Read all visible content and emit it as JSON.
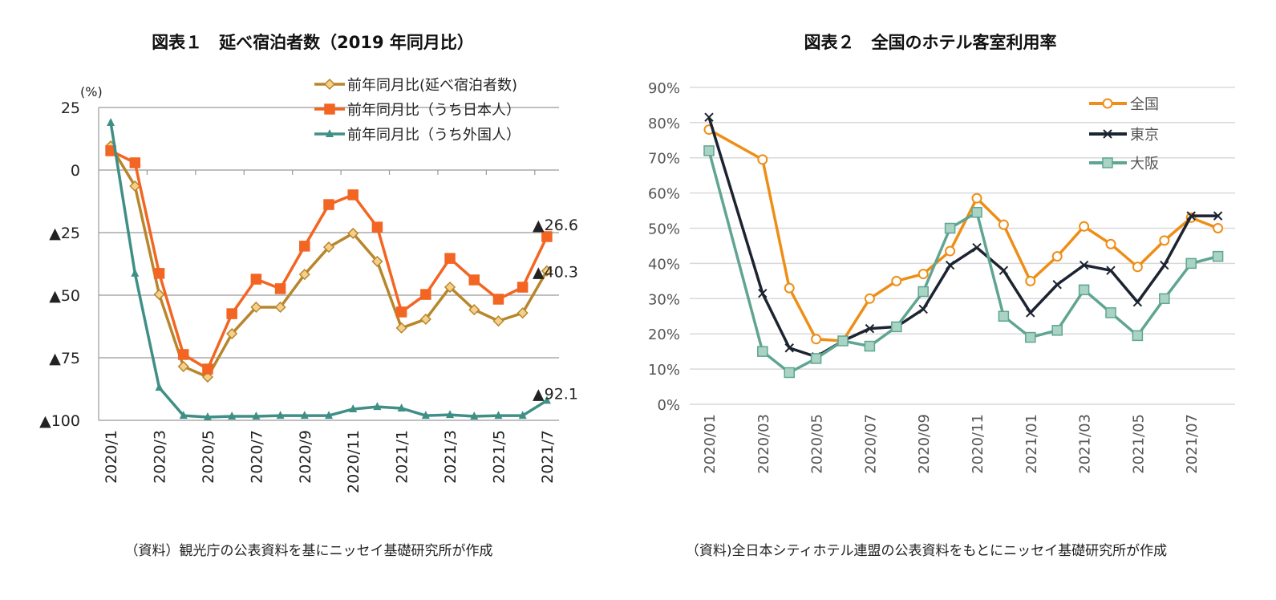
{
  "chart_data": [
    {
      "type": "line",
      "title": "図表１　延べ宿泊者数（2019 年同月比）",
      "ylabel": "(%)",
      "ylim": [
        -100,
        25
      ],
      "yticks": [
        25,
        0,
        -25,
        -50,
        -75,
        -100
      ],
      "ytick_labels": [
        "25",
        "0",
        "▲25",
        "▲50",
        "▲75",
        "▲100"
      ],
      "categories": [
        "2020/1",
        "2020/2",
        "2020/3",
        "2020/4",
        "2020/5",
        "2020/6",
        "2020/7",
        "2020/8",
        "2020/9",
        "2020/10",
        "2020/11",
        "2020/12",
        "2021/1",
        "2021/2",
        "2021/3",
        "2021/4",
        "2021/5",
        "2021/6",
        "2021/7"
      ],
      "xtick_labels": [
        "2020/1",
        "2020/3",
        "2020/5",
        "2020/7",
        "2020/9",
        "2020/11",
        "2021/1",
        "2021/3",
        "2021/5",
        "2021/7"
      ],
      "grid": true,
      "legend": "top-right",
      "series": [
        {
          "name": "前年同月比(延べ宿泊者数)",
          "color": "#b8862b",
          "marker": "diamond",
          "values": [
            9.6,
            -6.4,
            -49.7,
            -78.5,
            -82.7,
            -65.4,
            -54.8,
            -54.8,
            -41.7,
            -30.8,
            -25.3,
            -36.5,
            -63.1,
            -59.6,
            -46.8,
            -55.8,
            -60.3,
            -57.1,
            -40.3
          ]
        },
        {
          "name": "前年同月比（うち日本人）",
          "color": "#f26522",
          "marker": "square",
          "values": [
            7.7,
            2.9,
            -41.3,
            -73.7,
            -79.5,
            -57.4,
            -43.6,
            -47.4,
            -30.4,
            -13.8,
            -9.9,
            -22.8,
            -56.7,
            -49.7,
            -35.3,
            -43.9,
            -51.6,
            -46.8,
            -26.6
          ]
        },
        {
          "name": "前年同月比（うち外国人）",
          "color": "#3f8f86",
          "marker": "triangle",
          "values": [
            18.9,
            -41.3,
            -86.9,
            -98.1,
            -98.7,
            -98.4,
            -98.4,
            -98.1,
            -98.1,
            -98.1,
            -95.5,
            -94.6,
            -95.2,
            -98.1,
            -97.8,
            -98.4,
            -98.1,
            -98.1,
            -92.1
          ]
        }
      ],
      "annotations": [
        {
          "text": "▲26.6",
          "series": 1
        },
        {
          "text": "▲40.3",
          "series": 0
        },
        {
          "text": "▲92.1",
          "series": 2
        }
      ],
      "source": "（資料）観光庁の公表資料を基にニッセイ基礎研究所が作成"
    },
    {
      "type": "line",
      "title": "図表２　全国のホテル客室利用率",
      "ylim": [
        0,
        90
      ],
      "yticks": [
        0,
        10,
        20,
        30,
        40,
        50,
        60,
        70,
        80,
        90
      ],
      "ytick_labels": [
        "0%",
        "10%",
        "20%",
        "30%",
        "40%",
        "50%",
        "60%",
        "70%",
        "80%",
        "90%"
      ],
      "categories": [
        "2020/01",
        "2020/02",
        "2020/03",
        "2020/04",
        "2020/05",
        "2020/06",
        "2020/07",
        "2020/08",
        "2020/09",
        "2020/10",
        "2020/11",
        "2020/12",
        "2021/01",
        "2021/02",
        "2021/03",
        "2021/04",
        "2021/05",
        "2021/06",
        "2021/07",
        "2021/08"
      ],
      "xtick_labels": [
        "2020/01",
        "2020/03",
        "2020/05",
        "2020/07",
        "2020/09",
        "2020/11",
        "2021/01",
        "2021/03",
        "2021/05",
        "2021/07"
      ],
      "grid": true,
      "legend": "top-right",
      "series": [
        {
          "name": "全国",
          "color": "#ee8e16",
          "marker": "circle",
          "values": [
            78,
            null,
            69.5,
            33,
            18.5,
            18,
            30,
            35,
            37,
            43.5,
            58.5,
            51,
            35,
            42,
            50.5,
            45.5,
            39,
            46.5,
            53,
            50
          ]
        },
        {
          "name": "東京",
          "color": "#1c2331",
          "marker": "x",
          "values": [
            81.5,
            null,
            31.5,
            16,
            13.5,
            18,
            21.5,
            22,
            27,
            39.5,
            44.5,
            38,
            26,
            34,
            39.5,
            38,
            29,
            39.5,
            53.5,
            53.5
          ]
        },
        {
          "name": "大阪",
          "color": "#5fa592",
          "marker": "square",
          "values": [
            72,
            null,
            15,
            9,
            13,
            18,
            16.5,
            22,
            32,
            50,
            54.5,
            25,
            19,
            21,
            32.5,
            26,
            19.5,
            30,
            40,
            42
          ]
        }
      ],
      "source": "（資料)全日本シティホテル連盟の公表資料をもとにニッセイ基礎研究所が作成"
    }
  ]
}
